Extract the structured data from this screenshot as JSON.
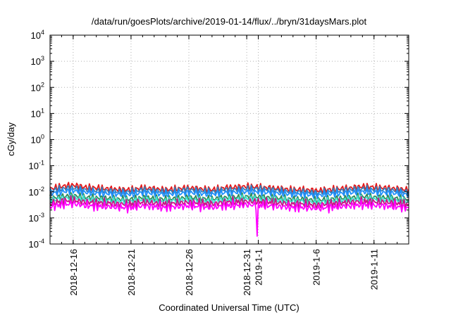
{
  "chart_data": {
    "type": "line",
    "title": "/data/run/goesPlots/archive/2019-01-14/flux/../bryn/31daysMars.plot",
    "xlabel": "Coordinated Universal Time (UTC)",
    "ylabel": "cGy/day",
    "yscale": "log",
    "ylim": [
      0.0001,
      10000
    ],
    "xlim": [
      "2018-12-14",
      "2019-01-14"
    ],
    "grid": true,
    "legend": "none",
    "y_ticks": [
      {
        "value": 0.0001,
        "base": "10",
        "exp": "-4"
      },
      {
        "value": 0.001,
        "base": "10",
        "exp": "-3"
      },
      {
        "value": 0.01,
        "base": "10",
        "exp": "-2"
      },
      {
        "value": 0.1,
        "base": "10",
        "exp": "-1"
      },
      {
        "value": 1,
        "base": "10",
        "exp": "0"
      },
      {
        "value": 10,
        "base": "10",
        "exp": "1"
      },
      {
        "value": 100,
        "base": "10",
        "exp": "2"
      },
      {
        "value": 1000,
        "base": "10",
        "exp": "3"
      },
      {
        "value": 10000,
        "base": "10",
        "exp": "4"
      }
    ],
    "x_ticks": [
      {
        "date": "2018-12-16",
        "label": "2018-12-16"
      },
      {
        "date": "2018-12-21",
        "label": "2018-12-21"
      },
      {
        "date": "2018-12-26",
        "label": "2018-12-26"
      },
      {
        "date": "2018-12-31",
        "label": "2018-12-31"
      },
      {
        "date": "2019-01-01",
        "label": "2019-1-1"
      },
      {
        "date": "2019-01-06",
        "label": "2019-1-6"
      },
      {
        "date": "2019-01-11",
        "label": "2019-1-11"
      }
    ],
    "x": [
      "2018-12-14",
      "2018-12-15",
      "2018-12-16",
      "2018-12-17",
      "2018-12-18",
      "2018-12-19",
      "2018-12-20",
      "2018-12-21",
      "2018-12-22",
      "2018-12-23",
      "2018-12-24",
      "2018-12-25",
      "2018-12-26",
      "2018-12-27",
      "2018-12-28",
      "2018-12-29",
      "2018-12-30",
      "2018-12-31",
      "2019-01-01",
      "2019-01-02",
      "2019-01-03",
      "2019-01-04",
      "2019-01-05",
      "2019-01-06",
      "2019-01-07",
      "2019-01-08",
      "2019-01-09",
      "2019-01-10",
      "2019-01-11",
      "2019-01-12",
      "2019-01-13",
      "2019-01-14"
    ],
    "series": [
      {
        "color": "#e41a1c",
        "values": [
          0.013,
          0.016,
          0.018,
          0.015,
          0.014,
          0.013,
          0.012,
          0.012,
          0.014,
          0.013,
          0.012,
          0.013,
          0.014,
          0.013,
          0.012,
          0.014,
          0.015,
          0.016,
          0.015,
          0.014,
          0.013,
          0.012,
          0.012,
          0.011,
          0.012,
          0.013,
          0.014,
          0.016,
          0.015,
          0.014,
          0.013,
          0.012
        ]
      },
      {
        "color": "#377eb8",
        "values": [
          0.011,
          0.013,
          0.014,
          0.012,
          0.011,
          0.011,
          0.01,
          0.01,
          0.012,
          0.011,
          0.01,
          0.011,
          0.012,
          0.011,
          0.01,
          0.012,
          0.012,
          0.013,
          0.013,
          0.012,
          0.011,
          0.01,
          0.01,
          0.009,
          0.01,
          0.011,
          0.012,
          0.013,
          0.012,
          0.012,
          0.011,
          0.01
        ]
      },
      {
        "color": "#1e90ff",
        "values": [
          0.0085,
          0.01,
          0.011,
          0.0095,
          0.0088,
          0.0085,
          0.008,
          0.008,
          0.0092,
          0.0086,
          0.008,
          0.0085,
          0.0092,
          0.0086,
          0.008,
          0.0092,
          0.0095,
          0.01,
          0.0098,
          0.0092,
          0.0086,
          0.008,
          0.008,
          0.0072,
          0.008,
          0.0086,
          0.0092,
          0.01,
          0.0095,
          0.0092,
          0.0086,
          0.0078
        ]
      },
      {
        "color": "#2e8b57",
        "values": [
          0.0055,
          0.0065,
          0.0072,
          0.0062,
          0.0058,
          0.0056,
          0.0052,
          0.0052,
          0.006,
          0.0056,
          0.0052,
          0.0056,
          0.006,
          0.0056,
          0.0052,
          0.006,
          0.0062,
          0.0066,
          0.0064,
          0.006,
          0.0056,
          0.0052,
          0.0052,
          0.0047,
          0.0052,
          0.0056,
          0.006,
          0.0066,
          0.0062,
          0.006,
          0.0056,
          0.005
        ]
      },
      {
        "color": "#40e0d0",
        "values": [
          0.0046,
          0.0055,
          0.006,
          0.0052,
          0.0048,
          0.0047,
          0.0044,
          0.0044,
          0.005,
          0.0047,
          0.0044,
          0.0047,
          0.005,
          0.0047,
          0.0044,
          0.005,
          0.0052,
          0.0055,
          0.0053,
          0.005,
          0.0047,
          0.0044,
          0.0044,
          0.0039,
          0.0044,
          0.0047,
          0.005,
          0.0055,
          0.0052,
          0.005,
          0.0047,
          0.0042
        ]
      },
      {
        "color": "#c71585",
        "values": [
          0.0036,
          0.0043,
          0.0047,
          0.0041,
          0.0038,
          0.0037,
          0.0034,
          0.0034,
          0.004,
          0.0037,
          0.0034,
          0.0037,
          0.004,
          0.0037,
          0.0034,
          0.004,
          0.0041,
          0.0043,
          0.0042,
          0.004,
          0.0037,
          0.0034,
          0.0034,
          0.0031,
          0.0034,
          0.0037,
          0.004,
          0.0043,
          0.0041,
          0.004,
          0.0037,
          0.0033
        ]
      },
      {
        "color": "#ff00ff",
        "values": [
          0.0027,
          0.0032,
          0.0035,
          0.003,
          0.0028,
          0.0027,
          0.0025,
          0.0025,
          0.0029,
          0.0027,
          0.0025,
          0.0027,
          0.0029,
          0.0027,
          0.0025,
          0.0029,
          0.003,
          0.0032,
          0.0031,
          0.0029,
          0.0027,
          0.0025,
          0.0025,
          0.0023,
          0.0025,
          0.0027,
          0.0029,
          0.0032,
          0.003,
          0.0029,
          0.0027,
          0.0024
        ]
      }
    ],
    "annotations": [
      {
        "date": "2019-01-01",
        "value": 0.0002,
        "note": "dip"
      }
    ]
  }
}
